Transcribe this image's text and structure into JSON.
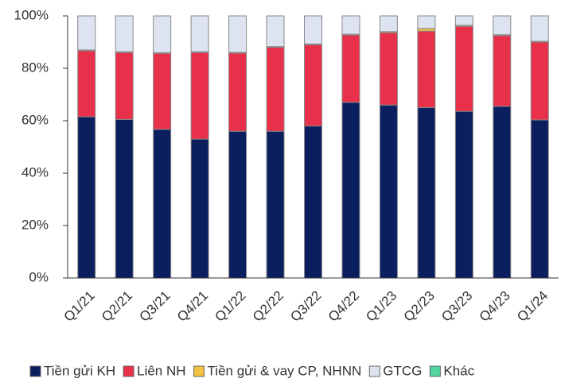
{
  "chart_data": {
    "type": "stacked_bar",
    "categories": [
      "Q1/21",
      "Q2/21",
      "Q3/21",
      "Q4/21",
      "Q1/22",
      "Q2/22",
      "Q3/22",
      "Q4/22",
      "Q1/23",
      "Q2/23",
      "Q3/23",
      "Q4/23",
      "Q1/24"
    ],
    "series": [
      {
        "name": "Tiền gửi KH",
        "color": "#0b1f5e",
        "values": [
          61.5,
          60.5,
          56.7,
          53,
          56,
          56,
          58,
          67,
          66,
          65,
          63.6,
          65.5,
          60.3
        ]
      },
      {
        "name": "Liên NH",
        "color": "#e8304a",
        "values": [
          25.2,
          25.5,
          29,
          33,
          29.8,
          32,
          31,
          25.7,
          27.6,
          29.2,
          32.4,
          27,
          29.7
        ]
      },
      {
        "name": "Tiền gửi & vay CP, NHNN",
        "color": "#f5c342",
        "values": [
          0.3,
          0.3,
          0.3,
          0.3,
          0.3,
          0.3,
          0.3,
          0.3,
          0.4,
          1,
          0.4,
          0.3,
          0.3
        ]
      },
      {
        "name": "GTCG",
        "color": "#dde3f0",
        "values": [
          13,
          13.7,
          14,
          13.7,
          13.9,
          11.7,
          10.7,
          7,
          6,
          4.8,
          3.6,
          7.2,
          9.7
        ]
      },
      {
        "name": "Khác",
        "color": "#4fd6a0",
        "values": [
          0,
          0,
          0,
          0,
          0,
          0,
          0,
          0,
          0,
          0,
          0,
          0,
          0
        ]
      }
    ],
    "ylim": [
      0,
      100
    ],
    "yticks": [
      {
        "value": 0,
        "label": "0%"
      },
      {
        "value": 20,
        "label": "20%"
      },
      {
        "value": 40,
        "label": "40%"
      },
      {
        "value": 60,
        "label": "60%"
      },
      {
        "value": 80,
        "label": "80%"
      },
      {
        "value": 100,
        "label": "100%"
      }
    ],
    "grid": false
  }
}
